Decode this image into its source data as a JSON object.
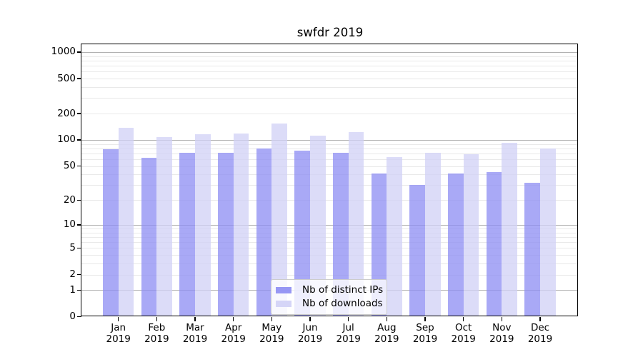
{
  "title": "swfdr 2019",
  "chart_data": {
    "type": "bar",
    "title": "swfdr 2019",
    "categories": [
      "Jan 2019",
      "Feb 2019",
      "Mar 2019",
      "Apr 2019",
      "May 2019",
      "Jun 2019",
      "Jul 2019",
      "Aug 2019",
      "Sep 2019",
      "Oct 2019",
      "Nov 2019",
      "Dec 2019"
    ],
    "series": [
      {
        "name": "Nb of distinct IPs",
        "color": "#8c8cf3",
        "values": [
          78,
          62,
          71,
          71,
          79,
          75,
          71,
          41,
          30,
          41,
          43,
          32
        ]
      },
      {
        "name": "Nb of downloads",
        "color": "#d0d0f6",
        "values": [
          138,
          107,
          116,
          118,
          155,
          111,
          123,
          64,
          71,
          69,
          92,
          79
        ]
      }
    ],
    "yscale": "log1p",
    "yticks": [
      0,
      1,
      2,
      5,
      10,
      20,
      50,
      100,
      200,
      500,
      1000
    ],
    "ylim": [
      0,
      1230
    ],
    "xlabel": "",
    "ylabel": "",
    "grid": true,
    "legend_position": "lower center"
  },
  "legend": {
    "items": [
      "Nb of distinct IPs",
      "Nb of downloads"
    ]
  },
  "colors": {
    "background": "#ffffff",
    "spine": "#000000",
    "major_grid": "#b2b2b2",
    "minor_grid": "#e9e9e9",
    "bar_ips": "#a9a9f7",
    "bar_downloads": "#dcdcf8"
  }
}
